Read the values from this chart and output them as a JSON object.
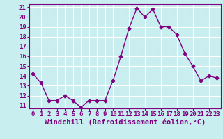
{
  "x": [
    0,
    1,
    2,
    3,
    4,
    5,
    6,
    7,
    8,
    9,
    10,
    11,
    12,
    13,
    14,
    15,
    16,
    17,
    18,
    19,
    20,
    21,
    22,
    23
  ],
  "y": [
    14.2,
    13.3,
    11.5,
    11.5,
    12.0,
    11.5,
    10.8,
    11.5,
    11.5,
    11.5,
    13.5,
    16.0,
    18.8,
    20.9,
    20.0,
    20.8,
    19.0,
    19.0,
    18.2,
    16.3,
    15.0,
    13.5,
    14.0,
    13.8
  ],
  "line_color": "#800080",
  "marker": "D",
  "marker_size": 2.5,
  "bg_color": "#c8eef0",
  "grid_color": "#ffffff",
  "xlabel": "Windchill (Refroidissement éolien,°C)",
  "ylim": [
    11,
    21
  ],
  "xlim": [
    -0.5,
    23.5
  ],
  "yticks": [
    11,
    12,
    13,
    14,
    15,
    16,
    17,
    18,
    19,
    20,
    21
  ],
  "xticks": [
    0,
    1,
    2,
    3,
    4,
    5,
    6,
    7,
    8,
    9,
    10,
    11,
    12,
    13,
    14,
    15,
    16,
    17,
    18,
    19,
    20,
    21,
    22,
    23
  ],
  "tick_label_fontsize": 6.5,
  "xlabel_fontsize": 7.5,
  "linewidth": 1.0
}
